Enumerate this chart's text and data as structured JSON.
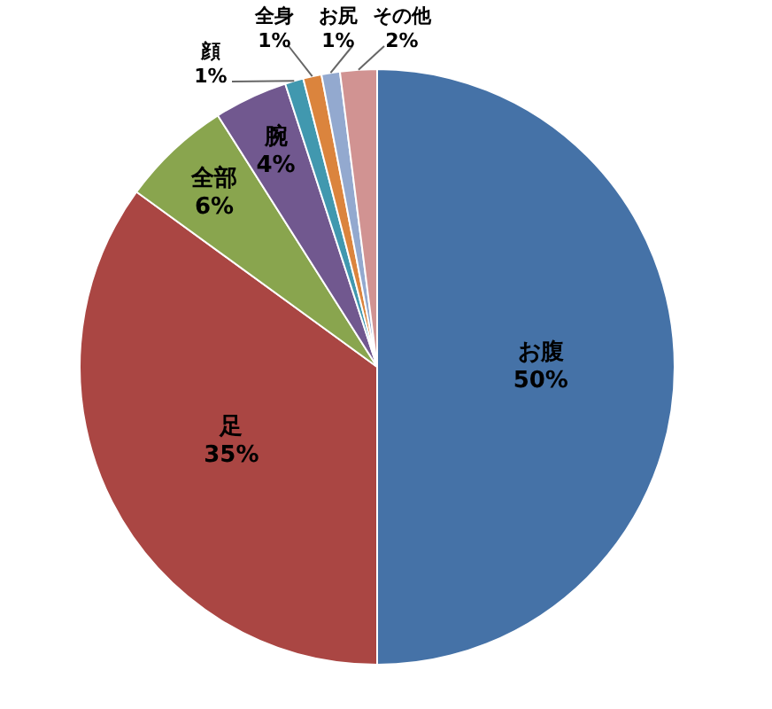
{
  "chart_data": {
    "type": "pie",
    "categories": [
      "お腹",
      "足",
      "全部",
      "腕",
      "顔",
      "全身",
      "お尻",
      "その他"
    ],
    "values": [
      50,
      35,
      6,
      4,
      1,
      1,
      1,
      2
    ],
    "value_labels": [
      "50%",
      "35%",
      "6%",
      "4%",
      "1%",
      "1%",
      "1%",
      "2%"
    ],
    "colors": [
      "#4572a7",
      "#aa4643",
      "#89a54e",
      "#71588f",
      "#4198af",
      "#db843d",
      "#93a9cf",
      "#d19392"
    ],
    "legend": false
  }
}
